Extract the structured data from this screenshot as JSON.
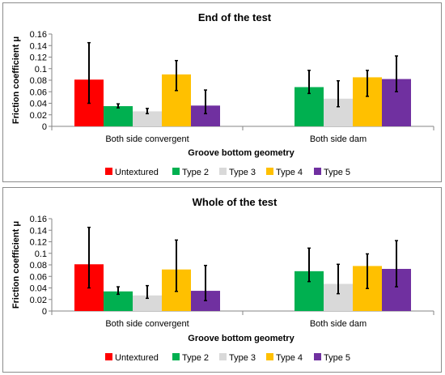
{
  "colors": {
    "Untextured": "#ff0000",
    "Type 2": "#00b050",
    "Type 3": "#d9d9d9",
    "Type 4": "#ffc000",
    "Type 5": "#7030a0",
    "error_bar": "#000000",
    "axis": "#868686",
    "panel_border": "#8c8c8c"
  },
  "chart_data": [
    {
      "type": "bar",
      "title": "End of the test",
      "xlabel": "Groove bottom geometry",
      "ylabel": "Friction coefficient μ",
      "ylim": [
        0,
        0.16
      ],
      "yticks": [
        "0",
        "0.02",
        "0.04",
        "0.06",
        "0.08",
        "0.1",
        "0.12",
        "0.14",
        "0.16"
      ],
      "categories": [
        "Both side convergent",
        "Both side dam"
      ],
      "legend_position": "bottom",
      "grid": false,
      "series": [
        {
          "name": "Untextured",
          "values": [
            0.081,
            null
          ],
          "err_low": [
            0.04,
            null
          ],
          "err_high": [
            0.145,
            null
          ]
        },
        {
          "name": "Type 2",
          "values": [
            0.035,
            0.068
          ],
          "err_low": [
            0.032,
            0.057
          ],
          "err_high": [
            0.039,
            0.097
          ]
        },
        {
          "name": "Type 3",
          "values": [
            0.026,
            0.048
          ],
          "err_low": [
            0.022,
            0.034
          ],
          "err_high": [
            0.031,
            0.079
          ]
        },
        {
          "name": "Type 4",
          "values": [
            0.09,
            0.085
          ],
          "err_low": [
            0.062,
            0.052
          ],
          "err_high": [
            0.114,
            0.097
          ]
        },
        {
          "name": "Type 5",
          "values": [
            0.036,
            0.082
          ],
          "err_low": [
            0.022,
            0.06
          ],
          "err_high": [
            0.063,
            0.122
          ]
        }
      ]
    },
    {
      "type": "bar",
      "title": "Whole of the test",
      "xlabel": "Groove bottom geometry",
      "ylabel": "Friction coefficient μ",
      "ylim": [
        0,
        0.16
      ],
      "yticks": [
        "0",
        "0.02",
        "0.04",
        "0.06",
        "0.08",
        "0.1",
        "0.12",
        "0.14",
        "0.16"
      ],
      "categories": [
        "Both side convergent",
        "Both side dam"
      ],
      "legend_position": "bottom",
      "grid": false,
      "series": [
        {
          "name": "Untextured",
          "values": [
            0.081,
            null
          ],
          "err_low": [
            0.04,
            null
          ],
          "err_high": [
            0.145,
            null
          ]
        },
        {
          "name": "Type 2",
          "values": [
            0.034,
            0.069
          ],
          "err_low": [
            0.029,
            0.051
          ],
          "err_high": [
            0.042,
            0.109
          ]
        },
        {
          "name": "Type 3",
          "values": [
            0.027,
            0.047
          ],
          "err_low": [
            0.022,
            0.03
          ],
          "err_high": [
            0.044,
            0.081
          ]
        },
        {
          "name": "Type 4",
          "values": [
            0.072,
            0.078
          ],
          "err_low": [
            0.034,
            0.039
          ],
          "err_high": [
            0.123,
            0.099
          ]
        },
        {
          "name": "Type 5",
          "values": [
            0.035,
            0.073
          ],
          "err_low": [
            0.018,
            0.042
          ],
          "err_high": [
            0.079,
            0.122
          ]
        }
      ]
    }
  ]
}
